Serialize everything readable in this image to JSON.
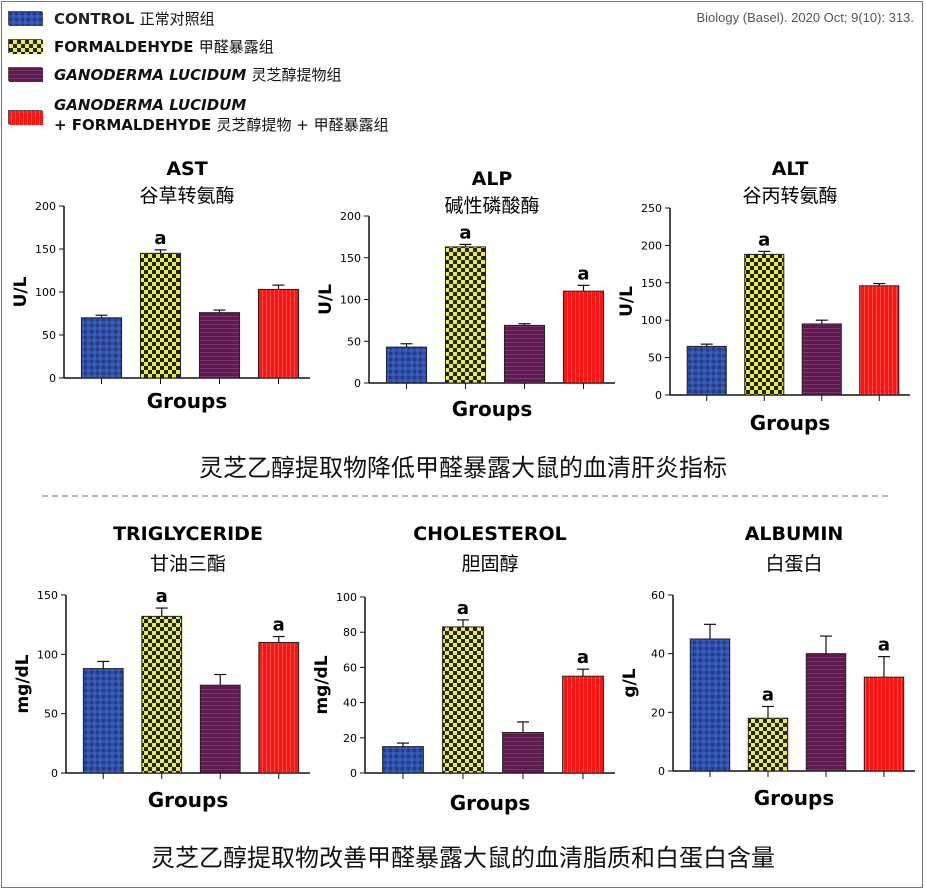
{
  "source": "Biology (Basel). 2020 Oct; 9(10): 313.",
  "legend": [
    {
      "name": "CONTROL",
      "cn": "正常对照组",
      "italic": false,
      "pattern": "control"
    },
    {
      "name": "FORMALDEHYDE",
      "cn": "甲醛暴露组",
      "italic": false,
      "pattern": "formaldehyde"
    },
    {
      "name": "GANODERMA LUCIDUM",
      "cn": "灵芝醇提物组",
      "italic": true,
      "pattern": "ganoderma"
    },
    {
      "name": "GANODERMA LUCIDUM",
      "name2": "+ FORMALDEHYDE",
      "cn": "灵芝醇提物 + 甲醛暴露组",
      "italic": true,
      "pattern": "combo"
    }
  ],
  "colors": {
    "control": "#2f4fa8",
    "formaldehyde": "#e6e640",
    "ganoderma": "#5c1a4e",
    "combo": "#ff1414"
  },
  "captions": {
    "top": "灵芝乙醇提取物降低甲醛暴露大鼠的血清肝炎指标",
    "bottom": "灵芝乙醇提取物改善甲醛暴露大鼠的血清脂质和白蛋白含量"
  },
  "chart_data": [
    {
      "type": "bar",
      "title": "AST",
      "subtitle": "谷草转氨酶",
      "xlabel": "Groups",
      "ylabel": "U/L",
      "ylim": [
        0,
        200
      ],
      "ticks": [
        0,
        50,
        100,
        150,
        200
      ],
      "values": [
        70,
        145,
        76,
        103
      ],
      "errors": [
        3,
        4,
        3,
        5
      ],
      "sig": [
        "",
        "a",
        "",
        ""
      ]
    },
    {
      "type": "bar",
      "title": "ALP",
      "subtitle": "碱性磷酸酶",
      "xlabel": "Groups",
      "ylabel": "U/L",
      "ylim": [
        0,
        200
      ],
      "ticks": [
        0,
        50,
        100,
        150,
        200
      ],
      "values": [
        43,
        163,
        69,
        110
      ],
      "errors": [
        4,
        3,
        2,
        7
      ],
      "sig": [
        "",
        "a",
        "",
        "a"
      ]
    },
    {
      "type": "bar",
      "title": "ALT",
      "subtitle": "谷丙转氨酶",
      "xlabel": "Groups",
      "ylabel": "U/L",
      "ylim": [
        0,
        250
      ],
      "ticks": [
        0,
        50,
        100,
        150,
        200,
        250
      ],
      "values": [
        65,
        188,
        95,
        146
      ],
      "errors": [
        3,
        4,
        5,
        3
      ],
      "sig": [
        "",
        "a",
        "",
        ""
      ]
    },
    {
      "type": "bar",
      "title": "TRIGLYCERIDE",
      "subtitle": "甘油三酯",
      "xlabel": "Groups",
      "ylabel": "mg/dL",
      "ylim": [
        0,
        150
      ],
      "ticks": [
        0,
        50,
        100,
        150
      ],
      "values": [
        88,
        132,
        74,
        110
      ],
      "errors": [
        6,
        7,
        9,
        5
      ],
      "sig": [
        "",
        "a",
        "",
        "a"
      ]
    },
    {
      "type": "bar",
      "title": "CHOLESTEROL",
      "subtitle": "胆固醇",
      "xlabel": "Groups",
      "ylabel": "mg/dL",
      "ylim": [
        0,
        100
      ],
      "ticks": [
        0,
        20,
        40,
        60,
        80,
        100
      ],
      "values": [
        15,
        83,
        23,
        55
      ],
      "errors": [
        2,
        4,
        6,
        4
      ],
      "sig": [
        "",
        "a",
        "",
        "a"
      ]
    },
    {
      "type": "bar",
      "title": "ALBUMIN",
      "subtitle": "白蛋白",
      "xlabel": "Groups",
      "ylabel": "g/L",
      "ylim": [
        0,
        60
      ],
      "ticks": [
        0,
        20,
        40,
        60
      ],
      "values": [
        45,
        18,
        40,
        32
      ],
      "errors": [
        5,
        4,
        6,
        7
      ],
      "sig": [
        "",
        "a",
        "",
        "a"
      ]
    }
  ]
}
